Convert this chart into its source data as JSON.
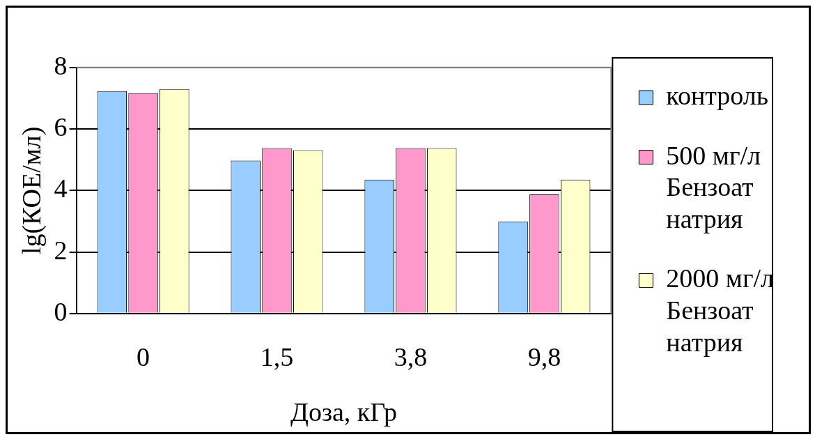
{
  "chart_data": {
    "type": "bar",
    "xlabel": "Доза, кГр",
    "ylabel": "lg(КОЕ/мл)",
    "categories": [
      "0",
      "1,5",
      "3,8",
      "9,8"
    ],
    "series": [
      {
        "name": "контроль",
        "color": "#99ccff",
        "values": [
          7.23,
          4.97,
          4.35,
          2.99
        ]
      },
      {
        "name": "500 мг/л Бензоат натрия",
        "color": "#ff99cc",
        "values": [
          7.16,
          5.38,
          5.38,
          3.87
        ]
      },
      {
        "name": "2000 мг/л Бензоат натрия",
        "color": "#ffffcc",
        "values": [
          7.3,
          5.31,
          5.38,
          4.35
        ]
      }
    ],
    "ylim": [
      0,
      8
    ],
    "yticks": [
      0,
      2,
      4,
      6,
      8
    ],
    "grid": "y",
    "legend": "right"
  }
}
